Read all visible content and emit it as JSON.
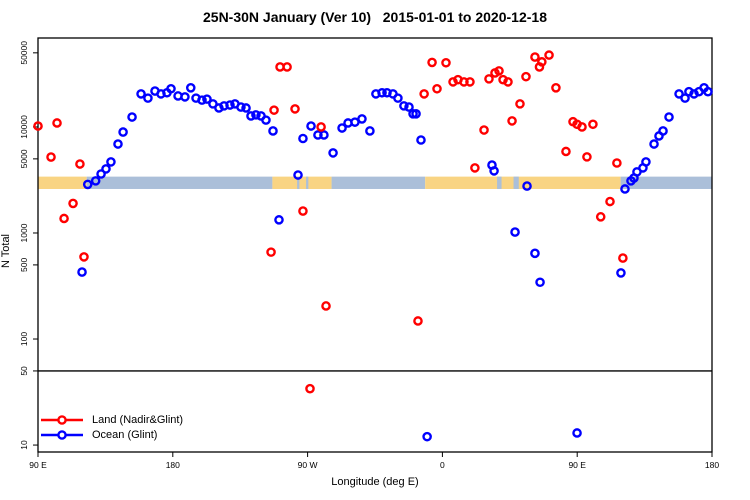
{
  "chart_data": {
    "type": "scatter",
    "title": "25N-30N January (Ver 10)   2015-01-01 to 2020-12-18",
    "xlabel": "Longitude (deg E)",
    "ylabel": "N Total",
    "x_axis": {
      "range": [
        90,
        540
      ],
      "ticks": [
        {
          "value": 90,
          "label": "90 E"
        },
        {
          "value": 180,
          "label": "180"
        },
        {
          "value": 270,
          "label": "90 W"
        },
        {
          "value": 360,
          "label": "0"
        },
        {
          "value": 450,
          "label": "90 E"
        },
        {
          "value": 540,
          "label": "180"
        }
      ]
    },
    "y_axis": {
      "scale": "log10",
      "range": [
        8.6,
        69000
      ],
      "ticks": [
        {
          "value": 10,
          "label": "10"
        },
        {
          "value": 50,
          "label": "50"
        },
        {
          "value": 100,
          "label": "100"
        },
        {
          "value": 500,
          "label": "500"
        },
        {
          "value": 1000,
          "label": "1000"
        },
        {
          "value": 5000,
          "label": "5000"
        },
        {
          "value": 10000,
          "label": "10000"
        },
        {
          "value": 50000,
          "label": "50000"
        }
      ]
    },
    "hline_value": 50,
    "map_strip": {
      "value_range": [
        2600,
        3400
      ],
      "land_color": "#F9D483",
      "ocean_color": "#ABBFD9",
      "segments": [
        {
          "from": 90,
          "to": 122.5,
          "surface": "land"
        },
        {
          "from": 122.5,
          "to": 246.5,
          "surface": "ocean"
        },
        {
          "from": 246.5,
          "to": 286,
          "surface": "land"
        },
        {
          "from": 286,
          "to": 348.5,
          "surface": "ocean"
        },
        {
          "from": 348.5,
          "to": 479,
          "surface": "land"
        },
        {
          "from": 479,
          "to": 540,
          "surface": "ocean"
        },
        {
          "from": 263,
          "to": 264.5,
          "surface": "ocean"
        },
        {
          "from": 269,
          "to": 270.5,
          "surface": "ocean"
        },
        {
          "from": 396.5,
          "to": 399.5,
          "surface": "ocean"
        },
        {
          "from": 407.5,
          "to": 411,
          "surface": "ocean"
        }
      ]
    },
    "legend": [
      {
        "label": "Land (Nadir&Glint)",
        "color": "#FF0000"
      },
      {
        "label": "Ocean (Glint)",
        "color": "#0000FF"
      }
    ],
    "series": [
      {
        "name": "Ocean (Glint)",
        "color": "#0000FF",
        "points": [
          [
            119.4,
            428
          ],
          [
            123.2,
            2870
          ],
          [
            128.5,
            3100
          ],
          [
            132.1,
            3600
          ],
          [
            135.4,
            4020
          ],
          [
            138.7,
            4680
          ],
          [
            143.4,
            6900
          ],
          [
            146.8,
            8950
          ],
          [
            152.8,
            12400
          ],
          [
            158.8,
            20500
          ],
          [
            163.4,
            18700
          ],
          [
            168.1,
            21800
          ],
          [
            172.1,
            20500
          ],
          [
            176.1,
            21000
          ],
          [
            178.8,
            22900
          ],
          [
            183.5,
            19600
          ],
          [
            188.1,
            19200
          ],
          [
            192,
            23400
          ],
          [
            195.5,
            18700
          ],
          [
            199.5,
            17900
          ],
          [
            202.8,
            18300
          ],
          [
            206.8,
            16500
          ],
          [
            210.8,
            15100
          ],
          [
            214.2,
            15800
          ],
          [
            218.2,
            16100
          ],
          [
            221.5,
            16500
          ],
          [
            225.5,
            15400
          ],
          [
            228.9,
            15100
          ],
          [
            232.2,
            12700
          ],
          [
            235.5,
            13000
          ],
          [
            238.9,
            12700
          ],
          [
            242.2,
            11600
          ],
          [
            246.9,
            9170
          ],
          [
            250.9,
            1330
          ],
          [
            263.6,
            3520
          ],
          [
            266.9,
            7780
          ],
          [
            272.3,
            10200
          ],
          [
            276.9,
            8400
          ],
          [
            280.9,
            8400
          ],
          [
            287,
            5690
          ],
          [
            293,
            9770
          ],
          [
            297,
            10900
          ],
          [
            301.6,
            11100
          ],
          [
            306.3,
            11900
          ],
          [
            311.6,
            9170
          ],
          [
            315.6,
            20500
          ],
          [
            319.7,
            21000
          ],
          [
            323,
            21000
          ],
          [
            327,
            20500
          ],
          [
            330.3,
            18700
          ],
          [
            334.3,
            15800
          ],
          [
            337.7,
            15400
          ],
          [
            340.4,
            13300
          ],
          [
            342.4,
            13300
          ],
          [
            345.7,
            7530
          ],
          [
            349.8,
            12
          ],
          [
            393.1,
            4370
          ],
          [
            394.5,
            3850
          ],
          [
            408.5,
            1020
          ],
          [
            416.5,
            2770
          ],
          [
            421.8,
            643
          ],
          [
            425.2,
            343
          ],
          [
            449.9,
            13
          ],
          [
            479.2,
            420
          ],
          [
            481.9,
            2600
          ],
          [
            485.9,
            3100
          ],
          [
            487.9,
            3300
          ],
          [
            489.9,
            3770
          ],
          [
            493.9,
            4110
          ],
          [
            495.9,
            4680
          ],
          [
            501.3,
            6900
          ],
          [
            504.6,
            8220
          ],
          [
            507.3,
            9170
          ],
          [
            511.3,
            12400
          ],
          [
            518,
            20500
          ],
          [
            522,
            18700
          ],
          [
            524.6,
            21500
          ],
          [
            528,
            20500
          ],
          [
            531.3,
            21500
          ],
          [
            534.7,
            23400
          ],
          [
            537.3,
            21500
          ]
        ]
      },
      {
        "name": "Land (Nadir&Glint)",
        "color": "#FF0000",
        "points": [
          [
            90,
            10200
          ],
          [
            98.7,
            5200
          ],
          [
            102.7,
            10900
          ],
          [
            107.4,
            1370
          ],
          [
            113.4,
            1900
          ],
          [
            118,
            4470
          ],
          [
            120.7,
            595
          ],
          [
            245.6,
            660
          ],
          [
            247.6,
            14400
          ],
          [
            251.6,
            36800
          ],
          [
            256.3,
            36800
          ],
          [
            261.6,
            14800
          ],
          [
            266.9,
            1610
          ],
          [
            271.6,
            34
          ],
          [
            279,
            10000
          ],
          [
            282.3,
            205
          ],
          [
            343.7,
            148
          ],
          [
            347.8,
            20500
          ],
          [
            353.1,
            40600
          ],
          [
            356.4,
            22900
          ],
          [
            362.4,
            40300
          ],
          [
            367.1,
            26600
          ],
          [
            370.4,
            27900
          ],
          [
            374.4,
            26600
          ],
          [
            378.4,
            26600
          ],
          [
            381.7,
            4110
          ],
          [
            387.8,
            9350
          ],
          [
            391.1,
            28400
          ],
          [
            395.1,
            32300
          ],
          [
            397.8,
            33800
          ],
          [
            400.5,
            27900
          ],
          [
            403.8,
            26600
          ],
          [
            406.5,
            11400
          ],
          [
            411.8,
            16500
          ],
          [
            415.8,
            29800
          ],
          [
            421.8,
            45600
          ],
          [
            424.8,
            36800
          ],
          [
            426.4,
            41100
          ],
          [
            431.2,
            47600
          ],
          [
            435.8,
            23400
          ],
          [
            442.5,
            5870
          ],
          [
            447.2,
            11200
          ],
          [
            449.9,
            10600
          ],
          [
            453.2,
            10000
          ],
          [
            456.5,
            5220
          ],
          [
            460.5,
            10600
          ],
          [
            465.7,
            1420
          ],
          [
            471.9,
            1980
          ],
          [
            476.5,
            4570
          ],
          [
            480.5,
            580
          ]
        ]
      }
    ]
  }
}
